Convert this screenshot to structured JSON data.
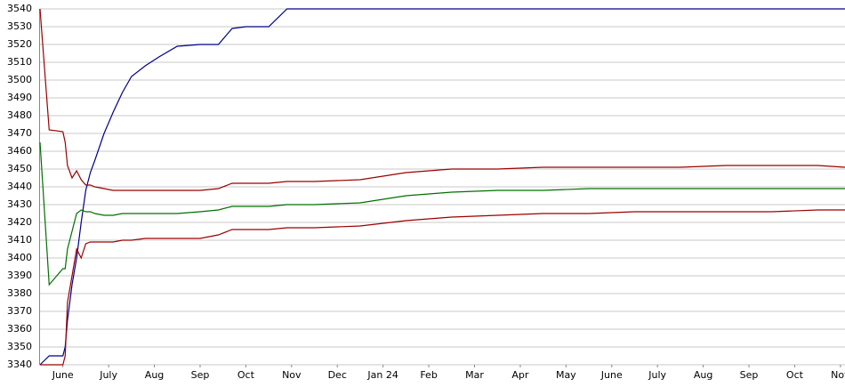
{
  "chart_data": {
    "type": "line",
    "x": [
      0,
      0.2,
      0.5,
      0.55,
      0.6,
      0.7,
      0.8,
      0.9,
      1.0,
      1.1,
      1.2,
      1.4,
      1.6,
      1.8,
      2.0,
      2.3,
      2.6,
      3.0,
      3.5,
      3.9,
      4.2,
      4.5,
      5.0,
      5.4,
      6,
      7,
      8,
      9,
      10,
      11,
      12,
      13,
      14,
      15,
      16,
      17,
      17.6
    ],
    "series": [
      {
        "color": "#00008b",
        "values": [
          3340,
          3345,
          3345,
          3350,
          3365,
          3385,
          3400,
          3420,
          3438,
          3448,
          3455,
          3470,
          3482,
          3493,
          3502,
          3508,
          3513,
          3519,
          3520,
          3520,
          3529,
          3530,
          3530,
          3540,
          3540,
          3540,
          3540,
          3540,
          3540,
          3540,
          3540,
          3540,
          3540,
          3540,
          3540,
          3540,
          3540
        ]
      },
      {
        "color": "#9b0000",
        "values": [
          3540,
          3472,
          3471,
          3465,
          3452,
          3445,
          3449,
          3444,
          3441,
          3441,
          3440,
          3439,
          3438,
          3438,
          3438,
          3438,
          3438,
          3438,
          3438,
          3439,
          3442,
          3442,
          3442,
          3443,
          3443,
          3444,
          3448,
          3450,
          3450,
          3451,
          3451,
          3451,
          3451,
          3452,
          3452,
          3452,
          3451
        ]
      },
      {
        "color": "#007000",
        "values": [
          3465,
          3385,
          3394,
          3394,
          3405,
          3415,
          3425,
          3427,
          3426,
          3426,
          3425,
          3424,
          3424,
          3425,
          3425,
          3425,
          3425,
          3425,
          3426,
          3427,
          3429,
          3429,
          3429,
          3430,
          3430,
          3431,
          3435,
          3437,
          3438,
          3438,
          3439,
          3439,
          3439,
          3439,
          3439,
          3439,
          3439
        ]
      },
      {
        "color": "#9b0000",
        "values": [
          3340,
          3340,
          3340,
          3345,
          3375,
          3390,
          3405,
          3400,
          3408,
          3409,
          3409,
          3409,
          3409,
          3410,
          3410,
          3411,
          3411,
          3411,
          3411,
          3413,
          3416,
          3416,
          3416,
          3417,
          3417,
          3418,
          3421,
          3423,
          3424,
          3425,
          3425,
          3426,
          3426,
          3426,
          3426,
          3427,
          3427
        ]
      }
    ],
    "xlim": [
      0,
      17.6
    ],
    "xticks": [
      {
        "value": 0.5,
        "label": "June"
      },
      {
        "value": 1.5,
        "label": "July"
      },
      {
        "value": 2.5,
        "label": "Aug"
      },
      {
        "value": 3.5,
        "label": "Sep"
      },
      {
        "value": 4.5,
        "label": "Oct"
      },
      {
        "value": 5.5,
        "label": "Nov"
      },
      {
        "value": 6.5,
        "label": "Dec"
      },
      {
        "value": 7.5,
        "label": "Jan 24"
      },
      {
        "value": 8.5,
        "label": "Feb"
      },
      {
        "value": 9.5,
        "label": "Mar"
      },
      {
        "value": 10.5,
        "label": "Apr"
      },
      {
        "value": 11.5,
        "label": "May"
      },
      {
        "value": 12.5,
        "label": "June"
      },
      {
        "value": 13.5,
        "label": "July"
      },
      {
        "value": 14.5,
        "label": "Aug"
      },
      {
        "value": 15.5,
        "label": "Sep"
      },
      {
        "value": 16.5,
        "label": "Oct"
      },
      {
        "value": 17.5,
        "label": "Nov"
      }
    ],
    "ylim": [
      3340,
      3540
    ],
    "yticks": [
      3340,
      3350,
      3360,
      3370,
      3380,
      3390,
      3400,
      3410,
      3420,
      3430,
      3440,
      3450,
      3460,
      3470,
      3480,
      3490,
      3500,
      3510,
      3520,
      3530,
      3540
    ],
    "grid": true
  }
}
